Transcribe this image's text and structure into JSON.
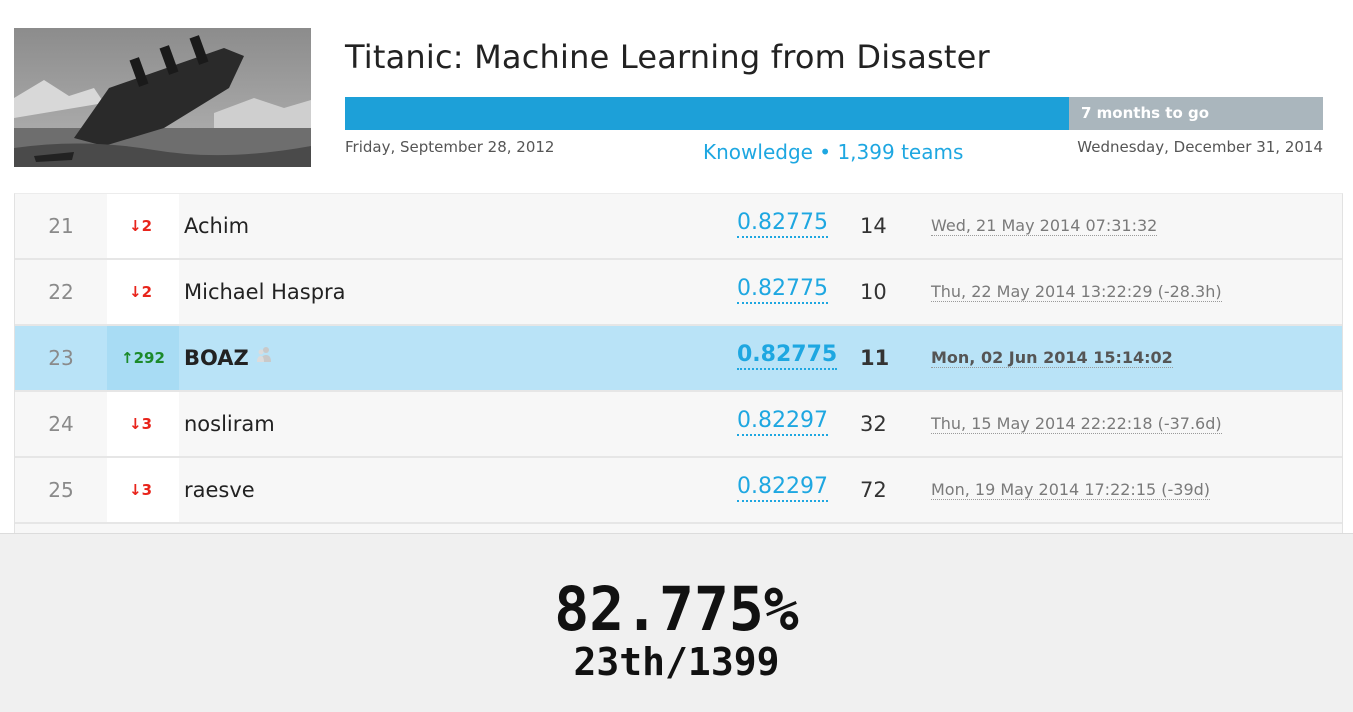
{
  "competition": {
    "title": "Titanic: Machine Learning from Disaster",
    "progress_fraction": 0.74,
    "time_remaining": "7 months to go",
    "start_date": "Friday, September 28, 2012",
    "end_date": "Wednesday, December 31, 2014",
    "meta": "Knowledge • 1,399 teams",
    "image_icon": "titanic-sinking-image"
  },
  "leaderboard": {
    "rows": [
      {
        "rank": "21",
        "delta": "↓2",
        "direction": "down",
        "team": "Achim",
        "score": "0.82775",
        "entries": "14",
        "last_submission": "Wed, 21 May 2014 07:31:32"
      },
      {
        "rank": "22",
        "delta": "↓2",
        "direction": "down",
        "team": "Michael Haspra",
        "score": "0.82775",
        "entries": "10",
        "last_submission": "Thu, 22 May 2014 13:22:29 (-28.3h)"
      },
      {
        "rank": "23",
        "delta": "↑292",
        "direction": "up",
        "team": "BOAZ",
        "score": "0.82775",
        "entries": "11",
        "last_submission": "Mon, 02 Jun 2014 15:14:02",
        "highlight": true
      },
      {
        "rank": "24",
        "delta": "↓3",
        "direction": "down",
        "team": "nosliram",
        "score": "0.82297",
        "entries": "32",
        "last_submission": "Thu, 15 May 2014 22:22:18 (-37.6d)"
      },
      {
        "rank": "25",
        "delta": "↓3",
        "direction": "down",
        "team": "raesve",
        "score": "0.82297",
        "entries": "72",
        "last_submission": "Mon, 19 May 2014 17:22:15 (-39d)"
      }
    ]
  },
  "summary": {
    "accuracy": "82.775%",
    "placement": "23th/1399"
  },
  "colors": {
    "accent": "#1da0d8",
    "highlight_row": "#b9e3f7",
    "rank_down": "#e8241b",
    "rank_up": "#1b8a2a"
  }
}
